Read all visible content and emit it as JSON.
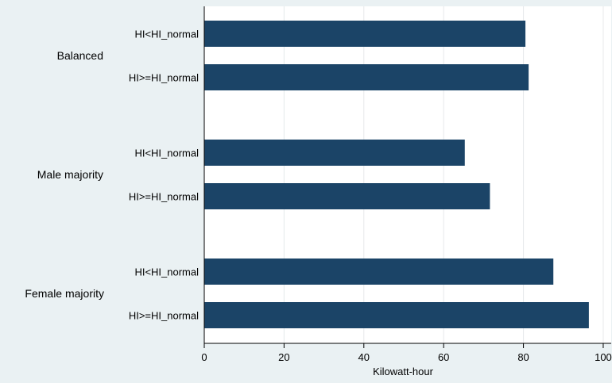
{
  "chart_data": {
    "type": "bar",
    "orientation": "horizontal",
    "title": "",
    "xlabel": "Kilowatt-hour",
    "ylabel": "",
    "xlim": [
      0,
      102
    ],
    "xticks": [
      0,
      20,
      40,
      60,
      80,
      100
    ],
    "grid": true,
    "groups": [
      {
        "label": "Balanced",
        "bars": [
          {
            "label": "HI<HI_normal",
            "value": 80.5
          },
          {
            "label": "HI>=HI_normal",
            "value": 81.3
          }
        ]
      },
      {
        "label": "Male majority",
        "bars": [
          {
            "label": "HI<HI_normal",
            "value": 65.3
          },
          {
            "label": "HI>=HI_normal",
            "value": 71.6
          }
        ]
      },
      {
        "label": "Female majority",
        "bars": [
          {
            "label": "HI<HI_normal",
            "value": 87.5
          },
          {
            "label": "HI>=HI_normal",
            "value": 96.4
          }
        ]
      }
    ]
  },
  "colors": {
    "bar": "#1b4467",
    "plot_background": "#ffffff",
    "outer_background": "#eaf1f3",
    "grid": "#e6e9ea"
  }
}
